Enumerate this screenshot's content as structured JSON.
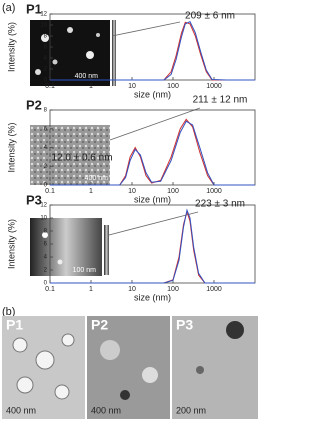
{
  "panel_labels": {
    "a": "(a)",
    "b": "(b)"
  },
  "micrographs": [
    {
      "label": "P1",
      "scale": "400 nm"
    },
    {
      "label": "P2",
      "scale": "400 nm"
    },
    {
      "label": "P3",
      "scale": "200 nm"
    }
  ],
  "insets": [
    {
      "scale": "400 nm"
    },
    {
      "scale": "400 nm"
    },
    {
      "scale": "100 nm"
    }
  ],
  "chart_data": [
    {
      "type": "line",
      "title": "P1",
      "xlabel": "size (nm)",
      "ylabel": "Intensity (%)",
      "annotation": "209 ± 6 nm",
      "log_x": true,
      "xlim": [
        0.1,
        10000
      ],
      "xticks": [
        0.1,
        1,
        10,
        100,
        1000
      ],
      "ylim": [
        0,
        12
      ],
      "yticks": [
        0,
        2,
        4,
        6,
        8,
        10,
        12
      ],
      "x": [
        0.1,
        60,
        90,
        120,
        160,
        200,
        260,
        350,
        480,
        650,
        900,
        2000,
        10000
      ],
      "series": [
        {
          "color": "#d03030",
          "values": [
            0,
            0,
            1.5,
            4.5,
            8.5,
            10.5,
            10.2,
            8,
            4.5,
            1.5,
            0,
            0,
            0
          ]
        },
        {
          "color": "#3050c0",
          "values": [
            0,
            0,
            1,
            3.8,
            7.8,
            10.2,
            10.6,
            8.6,
            5,
            1.8,
            0.1,
            0,
            0
          ]
        }
      ]
    },
    {
      "type": "line",
      "title": "P2",
      "xlabel": "size (nm)",
      "ylabel": "Intensity (%)",
      "annotation": "211 ± 12 nm",
      "annotation2": "12.0 ± 0.6 nm",
      "log_x": true,
      "xlim": [
        0.1,
        10000
      ],
      "xticks": [
        0.1,
        1,
        10,
        100,
        1000
      ],
      "ylim": [
        0,
        8
      ],
      "yticks": [
        0,
        2,
        4,
        6,
        8
      ],
      "x": [
        0.1,
        5,
        7,
        9,
        12,
        16,
        22,
        30,
        50,
        90,
        150,
        210,
        300,
        450,
        700,
        1000,
        10000
      ],
      "series": [
        {
          "color": "#d03030",
          "values": [
            0,
            0,
            1,
            3,
            4,
            3,
            1,
            0.2,
            0.5,
            3,
            6,
            7,
            6.2,
            3.5,
            1,
            0,
            0
          ]
        },
        {
          "color": "#3050c0",
          "values": [
            0,
            0,
            0.8,
            2.6,
            3.8,
            3.2,
            1.3,
            0.3,
            0.4,
            2.6,
            5.6,
            6.8,
            6.4,
            4,
            1.3,
            0,
            0
          ]
        }
      ]
    },
    {
      "type": "line",
      "title": "P3",
      "xlabel": "size (nm)",
      "ylabel": "Intensity (%)",
      "annotation": "223 ± 3 nm",
      "log_x": true,
      "xlim": [
        0.1,
        10000
      ],
      "xticks": [
        0.1,
        1,
        10,
        100,
        1000
      ],
      "ylim": [
        0,
        12
      ],
      "yticks": [
        0,
        2,
        4,
        6,
        8,
        10,
        12
      ],
      "x": [
        0.1,
        60,
        100,
        140,
        180,
        220,
        260,
        320,
        420,
        600,
        10000
      ],
      "series": [
        {
          "color": "#d03030",
          "values": [
            0,
            0,
            0.5,
            4,
            9,
            11,
            9.5,
            5,
            1.2,
            0,
            0
          ]
        },
        {
          "color": "#3050c0",
          "values": [
            0,
            0,
            0.4,
            3.5,
            8.6,
            11.2,
            10,
            5.5,
            1.5,
            0,
            0
          ]
        }
      ]
    }
  ]
}
